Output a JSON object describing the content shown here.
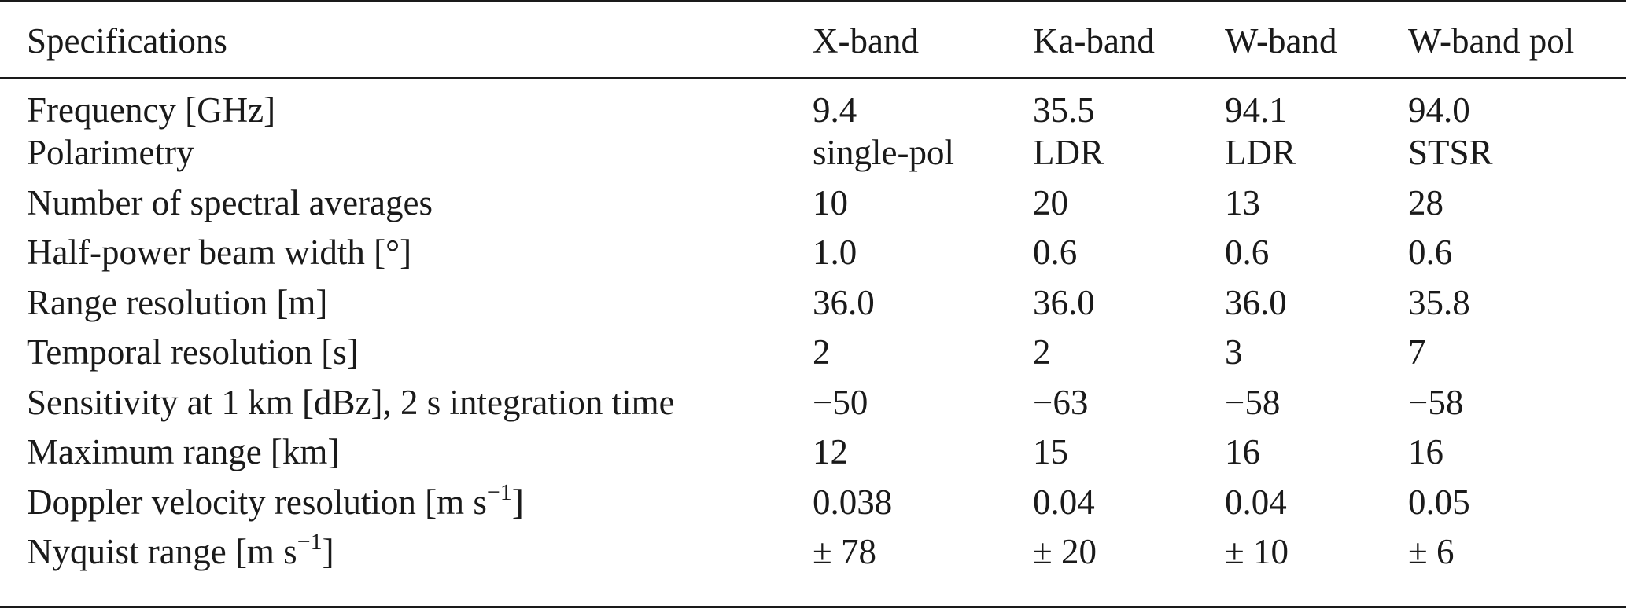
{
  "table": {
    "headers": [
      "Specifications",
      "X-band",
      "Ka-band",
      "W-band",
      "W-band pol"
    ],
    "rows": [
      {
        "label": "Frequency [GHz]",
        "values": [
          "9.4",
          "35.5",
          "94.1",
          "94.0"
        ]
      },
      {
        "label": "Polarimetry",
        "values": [
          "single-pol",
          "LDR",
          "LDR",
          "STSR"
        ]
      },
      {
        "label": "Number of spectral averages",
        "values": [
          "10",
          "20",
          "13",
          "28"
        ]
      },
      {
        "label": "Half-power beam width [°]",
        "values": [
          "1.0",
          "0.6",
          "0.6",
          "0.6"
        ]
      },
      {
        "label": "Range resolution [m]",
        "values": [
          "36.0",
          "36.0",
          "36.0",
          "35.8"
        ]
      },
      {
        "label": "Temporal resolution [s]",
        "values": [
          "2",
          "2",
          "3",
          "7"
        ]
      },
      {
        "label": "Sensitivity at 1 km [dBz], 2 s integration time",
        "values": [
          "−50",
          "−63",
          "−58",
          "−58"
        ]
      },
      {
        "label": "Maximum range [km]",
        "values": [
          "12",
          "15",
          "16",
          "16"
        ]
      },
      {
        "label_prefix": "Doppler velocity resolution [m s",
        "label_sup": "−1",
        "label_suffix": "]",
        "values": [
          "0.038",
          "0.04",
          "0.04",
          "0.05"
        ]
      },
      {
        "label_prefix": "Nyquist range [m s",
        "label_sup": "−1",
        "label_suffix": "]",
        "values": [
          "± 78",
          "± 20",
          "± 10",
          "± 6"
        ]
      }
    ]
  }
}
